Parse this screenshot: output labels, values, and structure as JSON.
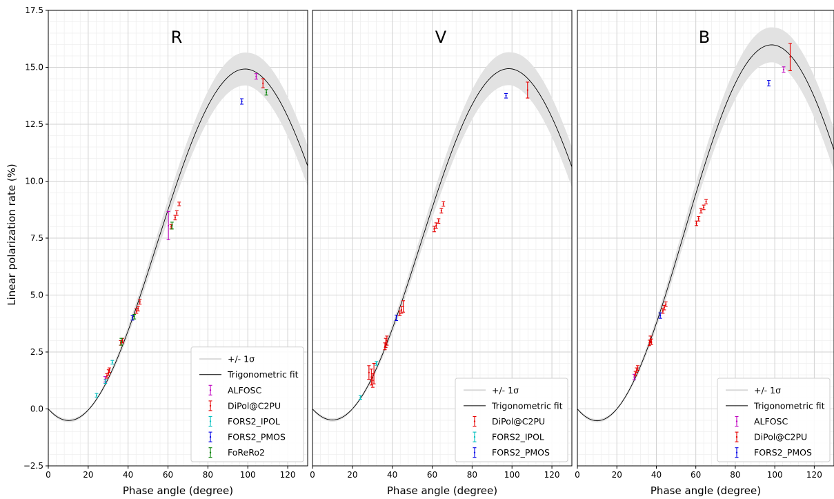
{
  "figure": {
    "ylabel": "Linear polarization rate (%)",
    "xlabel": "Phase angle (degree)"
  },
  "chart_data": [
    {
      "type": "scatter",
      "title": "R",
      "xlabel": "Phase angle (degree)",
      "ylabel": "Linear polarization rate (%)",
      "xlim": [
        0,
        130
      ],
      "ylim": [
        -2.5,
        17.5
      ],
      "xticks": [
        "0",
        "20",
        "40",
        "60",
        "80",
        "100",
        "120"
      ],
      "yticks": [
        "−2.5",
        "0.0",
        "2.5",
        "5.0",
        "7.5",
        "10.0",
        "12.5",
        "15.0",
        "17.5"
      ],
      "grid": true,
      "legend_position": "lower-right",
      "legend": [
        "+/- 1σ",
        "Trigonometric fit",
        "ALFOSC",
        "DiPol@C2PU",
        "FORS2_IPOL",
        "FORS2_PMOS",
        "FoReRo2"
      ],
      "fit": {
        "name": "Trigonometric fit",
        "pmax": 14.2,
        "alpha_max": 111,
        "alpha0": 20.5
      },
      "series": [
        {
          "name": "ALFOSC",
          "color": "#bf00bf",
          "points": [
            [
              28.5,
              1.3,
              0.12
            ],
            [
              60.2,
              8.05,
              0.62
            ],
            [
              104.2,
              14.6,
              0.12
            ]
          ]
        },
        {
          "name": "DiPol@C2PU",
          "color": "#e60000",
          "points": [
            [
              29.4,
              1.45,
              0.1
            ],
            [
              30.2,
              1.6,
              0.12
            ],
            [
              30.6,
              1.7,
              0.1
            ],
            [
              36.3,
              2.9,
              0.1
            ],
            [
              37.2,
              3.0,
              0.1
            ],
            [
              44.2,
              4.3,
              0.1
            ],
            [
              45.0,
              4.4,
              0.1
            ],
            [
              45.9,
              4.7,
              0.1
            ],
            [
              61.6,
              8.0,
              0.1
            ],
            [
              63.6,
              8.4,
              0.1
            ],
            [
              64.4,
              8.6,
              0.1
            ],
            [
              65.6,
              9.0,
              0.08
            ],
            [
              107.6,
              14.3,
              0.2
            ]
          ]
        },
        {
          "name": "FORS2_IPOL",
          "color": "#00bfbf",
          "points": [
            [
              24.2,
              0.6,
              0.08
            ],
            [
              28.6,
              1.2,
              0.08
            ],
            [
              32.1,
              2.05,
              0.08
            ]
          ]
        },
        {
          "name": "FORS2_PMOS",
          "color": "#0000e6",
          "points": [
            [
              42.2,
              4.0,
              0.1
            ],
            [
              97.0,
              13.5,
              0.12
            ]
          ]
        },
        {
          "name": "FoReRo2",
          "color": "#008000",
          "points": [
            [
              36.6,
              2.95,
              0.15
            ],
            [
              43.1,
              4.05,
              0.1
            ],
            [
              62.0,
              8.05,
              0.15
            ],
            [
              109.3,
              13.9,
              0.12
            ]
          ]
        }
      ]
    },
    {
      "type": "scatter",
      "title": "V",
      "xlabel": "Phase angle (degree)",
      "xlim": [
        0,
        130
      ],
      "ylim": [
        -2.5,
        17.5
      ],
      "xticks": [
        "0",
        "20",
        "40",
        "60",
        "80",
        "100",
        "120"
      ],
      "grid": true,
      "legend_position": "lower-right",
      "legend": [
        "+/- 1σ",
        "Trigonometric fit",
        "DiPol@C2PU",
        "FORS2_IPOL",
        "FORS2_PMOS"
      ],
      "fit": {
        "name": "Trigonometric fit",
        "pmax": 14.3,
        "alpha_max": 110,
        "alpha0": 20.0
      },
      "series": [
        {
          "name": "DiPol@C2PU",
          "color": "#e60000",
          "points": [
            [
              28.3,
              1.6,
              0.3
            ],
            [
              29.5,
              1.4,
              0.35
            ],
            [
              30.2,
              1.25,
              0.3
            ],
            [
              30.8,
              1.55,
              0.45
            ],
            [
              36.3,
              2.75,
              0.15
            ],
            [
              36.7,
              2.9,
              0.2
            ],
            [
              37.3,
              3.0,
              0.2
            ],
            [
              43.8,
              4.2,
              0.1
            ],
            [
              44.6,
              4.35,
              0.15
            ],
            [
              45.5,
              4.5,
              0.25
            ],
            [
              61.0,
              7.9,
              0.12
            ],
            [
              62.0,
              8.05,
              0.12
            ],
            [
              63.2,
              8.25,
              0.1
            ],
            [
              64.6,
              8.7,
              0.1
            ],
            [
              65.6,
              9.0,
              0.1
            ],
            [
              107.8,
              14.0,
              0.35
            ]
          ]
        },
        {
          "name": "FORS2_IPOL",
          "color": "#00bfbf",
          "points": [
            [
              24.0,
              0.5,
              0.08
            ],
            [
              32.0,
              2.0,
              0.08
            ]
          ]
        },
        {
          "name": "FORS2_PMOS",
          "color": "#0000e6",
          "points": [
            [
              42.0,
              4.0,
              0.12
            ],
            [
              97.0,
              13.75,
              0.1
            ]
          ]
        }
      ]
    },
    {
      "type": "scatter",
      "title": "B",
      "xlabel": "Phase angle (degree)",
      "xlim": [
        0,
        130
      ],
      "ylim": [
        -2.5,
        17.5
      ],
      "xticks": [
        "0",
        "20",
        "40",
        "60",
        "80",
        "100",
        "120"
      ],
      "grid": true,
      "legend_position": "lower-right",
      "legend": [
        "+/- 1σ",
        "Trigonometric fit",
        "ALFOSC",
        "DiPol@C2PU",
        "FORS2_PMOS"
      ],
      "fit": {
        "name": "Trigonometric fit",
        "pmax": 15.05,
        "alpha_max": 112,
        "alpha0": 20.0
      },
      "series": [
        {
          "name": "ALFOSC",
          "color": "#bf00bf",
          "points": [
            [
              28.8,
              1.4,
              0.12
            ],
            [
              104.5,
              14.9,
              0.12
            ]
          ]
        },
        {
          "name": "DiPol@C2PU",
          "color": "#e60000",
          "points": [
            [
              29.4,
              1.55,
              0.1
            ],
            [
              30.0,
              1.7,
              0.1
            ],
            [
              30.6,
              1.8,
              0.1
            ],
            [
              36.5,
              2.9,
              0.12
            ],
            [
              37.0,
              3.05,
              0.15
            ],
            [
              37.5,
              2.95,
              0.12
            ],
            [
              43.3,
              4.3,
              0.1
            ],
            [
              44.0,
              4.45,
              0.1
            ],
            [
              44.8,
              4.6,
              0.1
            ],
            [
              60.3,
              8.15,
              0.1
            ],
            [
              61.4,
              8.35,
              0.1
            ],
            [
              62.6,
              8.7,
              0.1
            ],
            [
              64.0,
              8.85,
              0.1
            ],
            [
              65.2,
              9.1,
              0.1
            ],
            [
              107.8,
              15.45,
              0.6
            ]
          ]
        },
        {
          "name": "FORS2_PMOS",
          "color": "#0000e6",
          "points": [
            [
              42.0,
              4.1,
              0.12
            ],
            [
              97.0,
              14.3,
              0.12
            ]
          ]
        }
      ]
    }
  ]
}
